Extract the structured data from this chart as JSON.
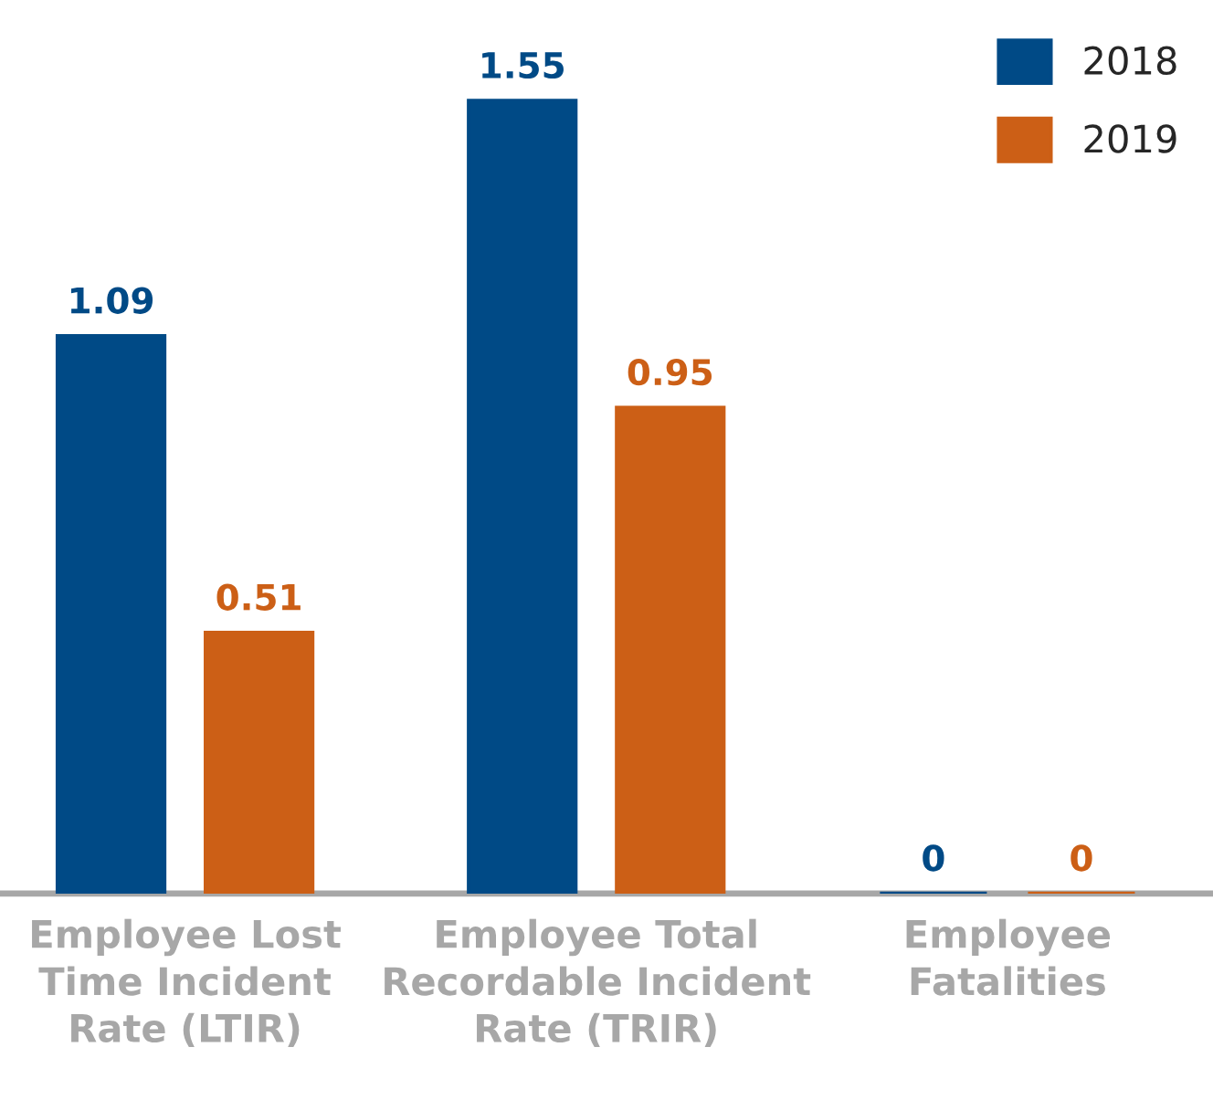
{
  "chart_data": {
    "type": "bar",
    "categories": [
      "Employee Lost\nTime Incident\nRate (LTIR)",
      "Employee Total\nRecordable Incident\nRate (TRIR)",
      "Employee\nFatalities"
    ],
    "series": [
      {
        "name": "2018",
        "color": "#004a86",
        "values": [
          1.09,
          1.55,
          0
        ]
      },
      {
        "name": "2019",
        "color": "#cc5f16",
        "values": [
          0.51,
          0.95,
          0
        ]
      }
    ],
    "data_labels": true,
    "legend": "top right",
    "grid": false
  }
}
